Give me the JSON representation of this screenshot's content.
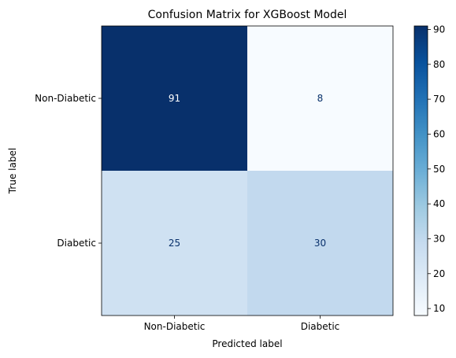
{
  "chart_data": {
    "type": "heatmap",
    "title": "Confusion Matrix for XGBoost Model",
    "xlabel": "Predicted label",
    "ylabel": "True label",
    "x_categories": [
      "Non-Diabetic",
      "Diabetic"
    ],
    "y_categories": [
      "Non-Diabetic",
      "Diabetic"
    ],
    "values": [
      [
        91,
        8
      ],
      [
        25,
        30
      ]
    ],
    "colormap": "Blues",
    "colorbar": {
      "range": [
        8,
        91
      ],
      "ticks": [
        "10",
        "20",
        "30",
        "40",
        "50",
        "60",
        "70",
        "80",
        "90"
      ]
    },
    "colors": {
      "cells": [
        [
          "#08306b",
          "#f7fbff"
        ],
        [
          "#cfe1f2",
          "#c2d9ee"
        ]
      ],
      "text_on_dark": "#ffffff",
      "text_on_light": "#08306b"
    }
  }
}
